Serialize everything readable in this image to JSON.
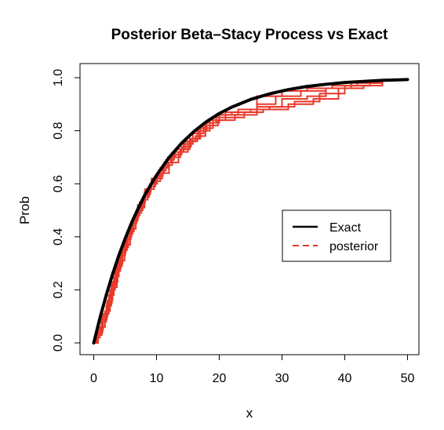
{
  "chart_data": {
    "type": "line",
    "title": "Posterior Beta–Stacy Process vs Exact",
    "xlabel": "x",
    "ylabel": "Prob",
    "xlim": [
      0,
      50
    ],
    "ylim": [
      0,
      1
    ],
    "x_ticks": [
      "0",
      "10",
      "20",
      "30",
      "40",
      "50"
    ],
    "y_ticks": [
      "0.0",
      "0.2",
      "0.4",
      "0.6",
      "0.8",
      "1.0"
    ],
    "legend": {
      "position": "right",
      "entries": [
        {
          "label": "Exact",
          "color": "#000000",
          "style": "solid"
        },
        {
          "label": "posterior",
          "color": "#e8392a",
          "style": "dashed"
        }
      ]
    },
    "series": [
      {
        "name": "Exact",
        "color": "#000000",
        "function": "1 - exp(-x/10)",
        "x": [
          0,
          1,
          2,
          3,
          4,
          5,
          6,
          7,
          8,
          9,
          10,
          12,
          14,
          16,
          18,
          20,
          22,
          25,
          28,
          31,
          34,
          37,
          40,
          43,
          46,
          50
        ],
        "y": [
          0,
          0.095,
          0.181,
          0.259,
          0.33,
          0.393,
          0.451,
          0.503,
          0.551,
          0.593,
          0.632,
          0.699,
          0.753,
          0.798,
          0.835,
          0.865,
          0.889,
          0.918,
          0.939,
          0.955,
          0.967,
          0.975,
          0.982,
          0.986,
          0.99,
          0.993
        ]
      },
      {
        "name": "posterior draw 1",
        "color": "#e8392a",
        "x": [
          0,
          0.5,
          1.2,
          2,
          2.8,
          3.5,
          4.3,
          5.1,
          6,
          7,
          8,
          9,
          10,
          11,
          12.5,
          14,
          15.5,
          17,
          19,
          21,
          23,
          26,
          29,
          33,
          37,
          41,
          45
        ],
        "y": [
          0,
          0.03,
          0.08,
          0.14,
          0.22,
          0.28,
          0.34,
          0.4,
          0.46,
          0.52,
          0.56,
          0.6,
          0.63,
          0.67,
          0.71,
          0.74,
          0.77,
          0.81,
          0.85,
          0.87,
          0.88,
          0.9,
          0.93,
          0.95,
          0.96,
          0.98,
          0.98
        ]
      },
      {
        "name": "posterior draw 2",
        "color": "#e8392a",
        "x": [
          0,
          0.6,
          1.4,
          2.2,
          3,
          3.8,
          4.6,
          5.5,
          6.4,
          7.3,
          8.2,
          9.2,
          10.3,
          11.5,
          12.8,
          14.3,
          15.8,
          17.5,
          19.5,
          22,
          25,
          28,
          32,
          36,
          40,
          44,
          46
        ],
        "y": [
          0,
          0.04,
          0.1,
          0.16,
          0.23,
          0.3,
          0.36,
          0.42,
          0.48,
          0.53,
          0.58,
          0.62,
          0.65,
          0.69,
          0.72,
          0.75,
          0.79,
          0.83,
          0.86,
          0.87,
          0.88,
          0.89,
          0.91,
          0.94,
          0.97,
          0.98,
          0.99
        ]
      },
      {
        "name": "posterior draw 3",
        "color": "#e8392a",
        "x": [
          0,
          0.4,
          1,
          1.8,
          2.6,
          3.4,
          4.2,
          5,
          5.9,
          6.8,
          7.8,
          8.8,
          9.8,
          10.9,
          12,
          13.5,
          15,
          16.5,
          18,
          20,
          23,
          26,
          30,
          34,
          38,
          42,
          45.5
        ],
        "y": [
          0,
          0.02,
          0.06,
          0.12,
          0.2,
          0.27,
          0.33,
          0.39,
          0.45,
          0.5,
          0.55,
          0.59,
          0.62,
          0.64,
          0.68,
          0.72,
          0.76,
          0.8,
          0.83,
          0.86,
          0.88,
          0.93,
          0.95,
          0.96,
          0.97,
          0.98,
          0.99
        ]
      },
      {
        "name": "posterior draw 4",
        "color": "#e8392a",
        "x": [
          0,
          0.7,
          1.5,
          2.4,
          3.2,
          4,
          4.9,
          5.8,
          6.7,
          7.6,
          8.6,
          9.6,
          10.6,
          11.8,
          13,
          14.6,
          16.2,
          17.8,
          19.8,
          22.5,
          26,
          30,
          34,
          37,
          41,
          44,
          46
        ],
        "y": [
          0,
          0.05,
          0.11,
          0.18,
          0.25,
          0.31,
          0.37,
          0.43,
          0.49,
          0.54,
          0.58,
          0.61,
          0.66,
          0.7,
          0.73,
          0.76,
          0.78,
          0.82,
          0.84,
          0.86,
          0.89,
          0.92,
          0.93,
          0.96,
          0.97,
          0.98,
          0.98
        ]
      },
      {
        "name": "posterior draw 5",
        "color": "#e8392a",
        "x": [
          0,
          0.5,
          1.3,
          2.1,
          2.9,
          3.7,
          4.5,
          5.3,
          6.2,
          7.1,
          8.1,
          9.1,
          10.1,
          11.2,
          12.3,
          13.8,
          15.3,
          16.8,
          18.5,
          21,
          24,
          27,
          31,
          35,
          39,
          43,
          46
        ],
        "y": [
          0,
          0.03,
          0.09,
          0.15,
          0.21,
          0.29,
          0.35,
          0.41,
          0.47,
          0.51,
          0.57,
          0.6,
          0.64,
          0.68,
          0.7,
          0.73,
          0.77,
          0.8,
          0.84,
          0.85,
          0.87,
          0.88,
          0.9,
          0.92,
          0.96,
          0.97,
          0.98
        ]
      }
    ]
  }
}
